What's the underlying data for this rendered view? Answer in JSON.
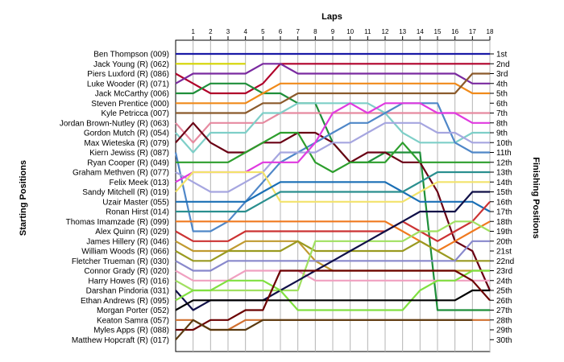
{
  "chart_data": {
    "type": "line",
    "title": "",
    "xlabel": "Laps",
    "ylabel_left": "Starting Positions",
    "ylabel_right": "Finishing Positions",
    "laps": [
      1,
      2,
      3,
      4,
      5,
      6,
      7,
      8,
      9,
      10,
      11,
      12,
      13,
      14,
      15,
      16,
      17,
      18
    ],
    "positions_count": 30,
    "grid": "vertical",
    "starting_grid": [
      "Ben Thompson (009)",
      "Jack Young  (R) (062)",
      "Piers Luxford  (R) (086)",
      "Luke Wooder (R) (071)",
      "Jack McCarthy  (006)",
      "Steven Prentice (000)",
      "Kyle Petricca  (007)",
      "Jordan Brown-Nutley (R) (063)",
      "Gordon Mutch (R) (054)",
      "Max Wieteska (R) (079)",
      "Kiern Jewiss  (R) (087)",
      "Ryan Cooper (R) (049)",
      "Graham Methven  (R) (077)",
      "Felix Meek (013)",
      "Sandy Mitchell (R) (019)",
      "Uzair Master  (055)",
      "Ronan Hirst (014)",
      "Thomas Imamzade (R) (099)",
      "Alex Quinn (R) (029)",
      "James Hillery (R) (046)",
      "William Woods (R) (066)",
      "Fletcher Trueman (R) (030)",
      "Connor Grady (R) (020)",
      "Harry Howes (R) (016)",
      "Darshan Pindoria (031)",
      "Ethan Andrews (R) (095)",
      "Morgan Porter (052)",
      "Keaton Samra  (057)",
      "Myles Apps  (R) (088)",
      "Matthew Hopcraft (R) (017)"
    ],
    "finishing_labels": [
      "1st",
      "2nd",
      "3rd",
      "4th",
      "5th",
      "6th",
      "7th",
      "8th",
      "9th",
      "10th",
      "11th",
      "12th",
      "13th",
      "14th",
      "15th",
      "16th",
      "17th",
      "18th",
      "19th",
      "20th",
      "21st",
      "22nd",
      "23rd",
      "24th",
      "25th",
      "26th",
      "27th",
      "28th",
      "29th",
      "30th"
    ],
    "series": [
      {
        "color": "#1a1aa6",
        "positions": [
          1,
          1,
          1,
          1,
          1,
          1,
          1,
          1,
          1,
          1,
          1,
          1,
          1,
          1,
          1,
          1,
          1,
          1,
          1
        ]
      },
      {
        "color": "#d4d400",
        "positions": [
          2,
          2,
          2,
          2,
          2
        ]
      },
      {
        "color": "#b0002a",
        "positions": [
          3,
          4,
          5,
          5,
          5,
          4,
          2,
          2,
          2,
          2,
          2,
          2,
          2,
          2,
          2,
          2,
          2,
          2,
          2
        ]
      },
      {
        "color": "#7a2aa0",
        "positions": [
          4,
          3,
          3,
          3,
          3,
          2,
          2,
          3,
          3,
          3,
          3,
          3,
          3,
          3,
          3,
          3,
          3,
          4,
          4
        ]
      },
      {
        "color": "#1f8f3a",
        "positions": [
          5,
          5,
          4,
          4,
          4,
          5,
          5,
          6,
          6,
          10,
          12,
          12,
          11,
          11,
          11,
          27,
          27,
          27,
          27
        ]
      },
      {
        "color": "#f08a1a",
        "positions": [
          6,
          6,
          6,
          6,
          6,
          5,
          4,
          4,
          4,
          4,
          4,
          4,
          4,
          4,
          4,
          4,
          4,
          5,
          5
        ]
      },
      {
        "color": "#8b5a2b",
        "positions": [
          7,
          7,
          7,
          7,
          7,
          6,
          6,
          5,
          5,
          5,
          5,
          5,
          5,
          5,
          5,
          5,
          5,
          3,
          3
        ]
      },
      {
        "color": "#e68aa0",
        "positions": [
          8,
          10,
          8,
          8,
          8,
          8,
          7,
          7,
          7,
          7,
          7,
          7,
          7,
          7,
          7,
          7,
          7,
          7,
          7
        ]
      },
      {
        "color": "#7ecfc8",
        "positions": [
          9,
          11,
          9,
          9,
          9,
          7,
          7,
          6,
          6,
          6,
          6,
          6,
          7,
          9,
          10,
          10,
          10,
          9,
          9
        ]
      },
      {
        "color": "#6a0014",
        "positions": [
          10,
          8,
          10,
          11,
          11,
          10,
          10,
          9,
          9,
          10,
          12,
          11,
          11,
          12,
          12,
          15,
          20,
          21,
          25
        ]
      },
      {
        "color": "#4f87c8",
        "positions": [
          11,
          19,
          19,
          18,
          16,
          14,
          12,
          11,
          10,
          9,
          8,
          8,
          7,
          6,
          6,
          6,
          10,
          11,
          11
        ]
      },
      {
        "color": "#2d9e2d",
        "positions": [
          12,
          12,
          12,
          12,
          11,
          10,
          9,
          9,
          12,
          13,
          12,
          12,
          12,
          10,
          12,
          12,
          12,
          12,
          12
        ]
      },
      {
        "color": "#a6a6e0",
        "positions": [
          13,
          14,
          15,
          15,
          14,
          13,
          11,
          11,
          11,
          10,
          10,
          9,
          8,
          8,
          8,
          9,
          9,
          10,
          10
        ]
      },
      {
        "color": "#e03ae0",
        "positions": [
          14,
          13,
          13,
          13,
          13,
          12,
          12,
          12,
          10,
          7,
          6,
          7,
          6,
          6,
          6,
          7,
          7,
          8,
          8
        ]
      },
      {
        "color": "#f2e36b",
        "positions": [
          15,
          13,
          13,
          13,
          13,
          13,
          16,
          16,
          16,
          16,
          16,
          16,
          16,
          16,
          15,
          14,
          14,
          14,
          14
        ]
      },
      {
        "color": "#1a6fb5",
        "positions": [
          16,
          16,
          16,
          16,
          16,
          15,
          14,
          14,
          14,
          14,
          14,
          14,
          14,
          15,
          16,
          16,
          16,
          16,
          17
        ]
      },
      {
        "color": "#2a8f8f",
        "positions": [
          17,
          17,
          17,
          17,
          17,
          16,
          15,
          15,
          15,
          15,
          15,
          15,
          15,
          15,
          14,
          13,
          13,
          13,
          13
        ]
      },
      {
        "color": "#f07a20",
        "positions": [
          18,
          18,
          18,
          18,
          18,
          18,
          18,
          18,
          18,
          18,
          18,
          18,
          18,
          19,
          20,
          21,
          20,
          19,
          18
        ]
      },
      {
        "color": "#cc3333",
        "positions": [
          19,
          20,
          20,
          20,
          19,
          19,
          19,
          19,
          19,
          19,
          19,
          19,
          19,
          18,
          19,
          20,
          19,
          18,
          16
        ]
      },
      {
        "color": "#c09a30",
        "positions": [
          20,
          21,
          21,
          21,
          20,
          20,
          20,
          20,
          22,
          23,
          23,
          23,
          23,
          23,
          23,
          23,
          23,
          23,
          23
        ]
      },
      {
        "color": "#9a9a20",
        "positions": [
          21,
          22,
          22,
          21,
          21,
          21,
          21,
          20,
          21,
          21,
          21,
          21,
          21,
          21,
          20,
          21,
          22,
          22,
          22
        ]
      },
      {
        "color": "#8888cc",
        "positions": [
          22,
          23,
          23,
          22,
          22,
          22,
          22,
          22,
          22,
          22,
          22,
          22,
          22,
          22,
          22,
          22,
          22,
          20,
          20
        ]
      },
      {
        "color": "#f0a0c0",
        "positions": [
          23,
          24,
          24,
          24,
          23,
          23,
          23,
          23,
          24,
          24,
          24,
          24,
          24,
          24,
          24,
          24,
          24,
          24,
          24
        ]
      },
      {
        "color": "#a0e060",
        "positions": [
          24,
          25,
          25,
          25,
          25,
          25,
          25,
          25,
          20,
          20,
          20,
          20,
          20,
          20,
          19,
          19,
          18,
          18,
          19
        ]
      },
      {
        "color": "#101048",
        "positions": [
          25,
          27,
          26,
          26,
          26,
          26,
          25,
          24,
          23,
          22,
          21,
          20,
          19,
          18,
          17,
          17,
          17,
          15,
          15
        ]
      },
      {
        "color": "#80e040",
        "positions": [
          26,
          25,
          25,
          24,
          24,
          24,
          25,
          27,
          27,
          27,
          27,
          27,
          27,
          27,
          25,
          24,
          24,
          23,
          23
        ]
      },
      {
        "color": "#000000",
        "positions": [
          27,
          26,
          26,
          26,
          26,
          26,
          26,
          26,
          26,
          26,
          26,
          26,
          26,
          26,
          26,
          26,
          26,
          25,
          25
        ]
      },
      {
        "color": "#d07030",
        "positions": [
          28,
          28,
          29,
          29,
          28,
          28,
          28,
          28,
          28,
          28,
          28,
          28,
          28,
          28,
          28,
          28,
          28,
          28,
          28
        ]
      },
      {
        "color": "#6b0000",
        "positions": [
          29,
          29,
          28,
          28,
          27,
          27,
          23,
          23,
          23,
          23,
          23,
          23,
          23,
          23,
          23,
          23,
          23,
          24,
          26
        ]
      },
      {
        "color": "#5a3a10",
        "positions": [
          30,
          28,
          29,
          29,
          29,
          28,
          28,
          28,
          28,
          28,
          28,
          28,
          28,
          28,
          28,
          28,
          28,
          28
        ]
      }
    ]
  }
}
